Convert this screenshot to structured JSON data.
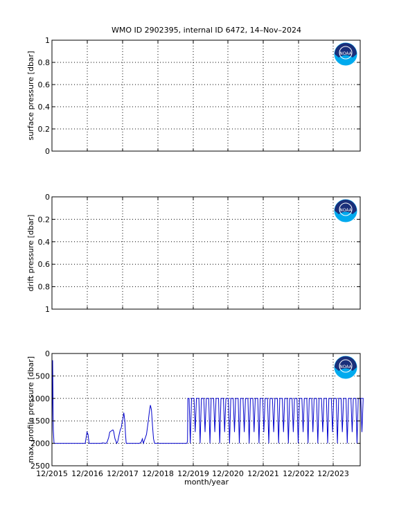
{
  "title": "WMO ID 2902395, internal ID 6472, 14–Nov–2024",
  "xlabel": "month/year",
  "x_ticks": [
    "12/2015",
    "12/2016",
    "12/2017",
    "12/2018",
    "12/2019",
    "12/2020",
    "12/2021",
    "12/2022",
    "12/2023"
  ],
  "logo_text": "NOAA",
  "colors": {
    "series": "#0000cc",
    "axis": "#000000",
    "grid": "#000000",
    "logo_ring": "#00aaee",
    "logo_center": "#1a2f7a"
  },
  "chart_data": [
    {
      "type": "line",
      "ylabel": "surface pressure [dbar]",
      "ylim": [
        0,
        1
      ],
      "y_reversed": false,
      "y_ticks": [
        "0",
        "0.2",
        "0.4",
        "0.6",
        "0.8",
        "1"
      ],
      "grid": true,
      "series": []
    },
    {
      "type": "line",
      "ylabel": "drift pressure [dbar]",
      "ylim": [
        0,
        1
      ],
      "y_reversed": true,
      "y_ticks": [
        "0",
        "0.2",
        "0.4",
        "0.6",
        "0.8",
        "1"
      ],
      "grid": true,
      "series": []
    },
    {
      "type": "line",
      "ylabel": "max. profile pressure [dbar]",
      "ylim": [
        0,
        2500
      ],
      "y_reversed": true,
      "y_ticks": [
        "0",
        "500",
        "1000",
        "1500",
        "2000",
        "2500"
      ],
      "grid": true,
      "x_units": "years since 12/2015",
      "series": [
        {
          "values": [
            [
              0.0,
              2000
            ],
            [
              0.02,
              150
            ],
            [
              0.04,
              1700
            ],
            [
              0.06,
              2000
            ],
            [
              0.95,
              2000
            ],
            [
              1.0,
              1750
            ],
            [
              1.03,
              1800
            ],
            [
              1.06,
              2000
            ],
            [
              1.15,
              2000
            ],
            [
              1.4,
              2000
            ],
            [
              1.45,
              1990
            ],
            [
              1.55,
              2000
            ],
            [
              1.58,
              1960
            ],
            [
              1.62,
              1870
            ],
            [
              1.65,
              1750
            ],
            [
              1.7,
              1720
            ],
            [
              1.74,
              1700
            ],
            [
              1.76,
              1730
            ],
            [
              1.8,
              1900
            ],
            [
              1.85,
              2000
            ],
            [
              1.88,
              1950
            ],
            [
              1.92,
              1800
            ],
            [
              1.95,
              1700
            ],
            [
              1.98,
              1650
            ],
            [
              2.0,
              1550
            ],
            [
              2.03,
              1430
            ],
            [
              2.05,
              1320
            ],
            [
              2.08,
              1500
            ],
            [
              2.1,
              1800
            ],
            [
              2.12,
              2000
            ],
            [
              2.5,
              2000
            ],
            [
              2.55,
              1970
            ],
            [
              2.58,
              1900
            ],
            [
              2.61,
              2000
            ],
            [
              2.7,
              1800
            ],
            [
              2.75,
              1500
            ],
            [
              2.78,
              1300
            ],
            [
              2.81,
              1150
            ],
            [
              2.84,
              1250
            ],
            [
              2.87,
              1600
            ],
            [
              2.9,
              1900
            ],
            [
              2.93,
              2000
            ],
            [
              3.8,
              2000
            ],
            [
              3.85,
              2000
            ],
            [
              3.87,
              1950
            ],
            [
              3.88,
              1000
            ]
          ],
          "cycling": {
            "from": 3.88,
            "to": 8.8,
            "period": 0.14,
            "shallow": 1000,
            "deep": [
              1750,
              2000
            ]
          }
        }
      ]
    }
  ]
}
